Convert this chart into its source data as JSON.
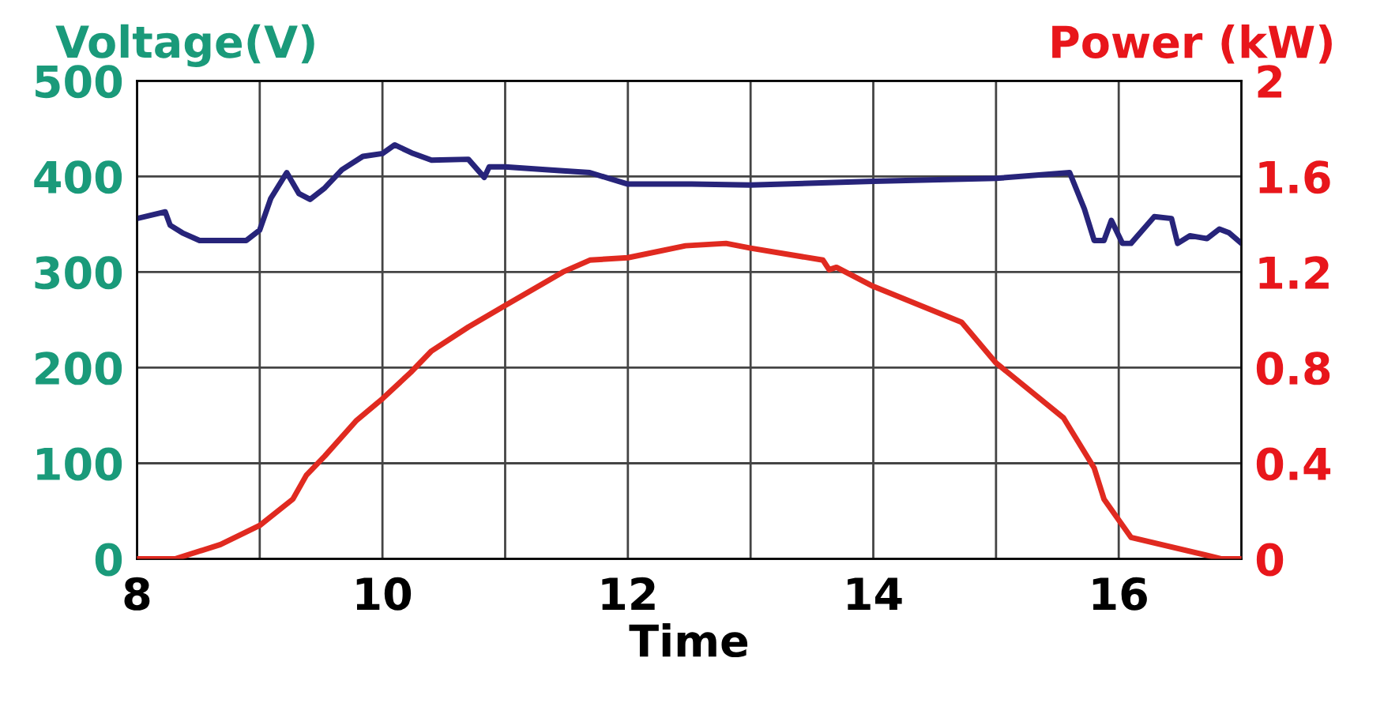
{
  "chart_data": {
    "type": "line",
    "xlabel": "Time",
    "ylabel": "Voltage(V)",
    "y2label": "Power (kW)",
    "xlim": [
      8,
      17
    ],
    "xticks": [
      8,
      {
        "value": 9,
        "label": null
      },
      10,
      {
        "value": 11,
        "label": null
      },
      12,
      {
        "value": 13,
        "label": null
      },
      14,
      {
        "value": 15,
        "label": null
      },
      16,
      {
        "value": 17,
        "label": null
      }
    ],
    "ylim": [
      0,
      500
    ],
    "yticks": [
      0,
      100,
      200,
      300,
      400,
      500
    ],
    "y2lim": [
      0,
      2
    ],
    "y2ticks": [
      0,
      0.4,
      0.8,
      1.2,
      1.6,
      2
    ],
    "grid": true,
    "marker": "none",
    "line_style": "solid",
    "series": [
      {
        "color": "#27247a",
        "x": [
          8.0,
          8.23,
          8.27,
          8.37,
          8.51,
          8.89,
          9.0,
          9.09,
          9.22,
          9.32,
          9.41,
          9.53,
          9.67,
          9.84,
          10.0,
          10.1,
          10.25,
          10.4,
          10.7,
          10.83,
          10.87,
          11.0,
          11.35,
          11.69,
          12.0,
          12.52,
          13.0,
          14.0,
          15.0,
          15.6,
          15.72,
          15.8,
          15.88,
          15.94,
          16.03,
          16.1,
          16.29,
          16.43,
          16.48,
          16.58,
          16.72,
          16.82,
          16.9,
          17.0
        ],
        "values": [
          356,
          363,
          349,
          341,
          333,
          333,
          344,
          377,
          404,
          382,
          376,
          388,
          407,
          421,
          424,
          433,
          424,
          417,
          418,
          399,
          410,
          410,
          407,
          404,
          392,
          392,
          391,
          395,
          398,
          404,
          366,
          333,
          333,
          354,
          330,
          330,
          358,
          356,
          330,
          338,
          335,
          345,
          341,
          330
        ]
      },
      {
        "color": "#e02a20",
        "axis": "y2",
        "x": [
          8.0,
          8.31,
          8.68,
          9.0,
          9.27,
          9.38,
          9.53,
          9.79,
          10.0,
          10.23,
          10.4,
          10.7,
          11.0,
          11.47,
          11.69,
          12.0,
          12.47,
          12.8,
          13.0,
          13.59,
          13.64,
          13.7,
          14.0,
          14.72,
          15.0,
          15.55,
          15.8,
          15.88,
          16.1,
          16.84,
          17.0
        ],
        "values": [
          0,
          0,
          0.06,
          0.14,
          0.25,
          0.35,
          0.43,
          0.58,
          0.67,
          0.78,
          0.87,
          0.97,
          1.06,
          1.2,
          1.25,
          1.26,
          1.31,
          1.32,
          1.3,
          1.25,
          1.21,
          1.22,
          1.14,
          0.99,
          0.82,
          0.59,
          0.38,
          0.25,
          0.09,
          0,
          0
        ]
      }
    ]
  }
}
